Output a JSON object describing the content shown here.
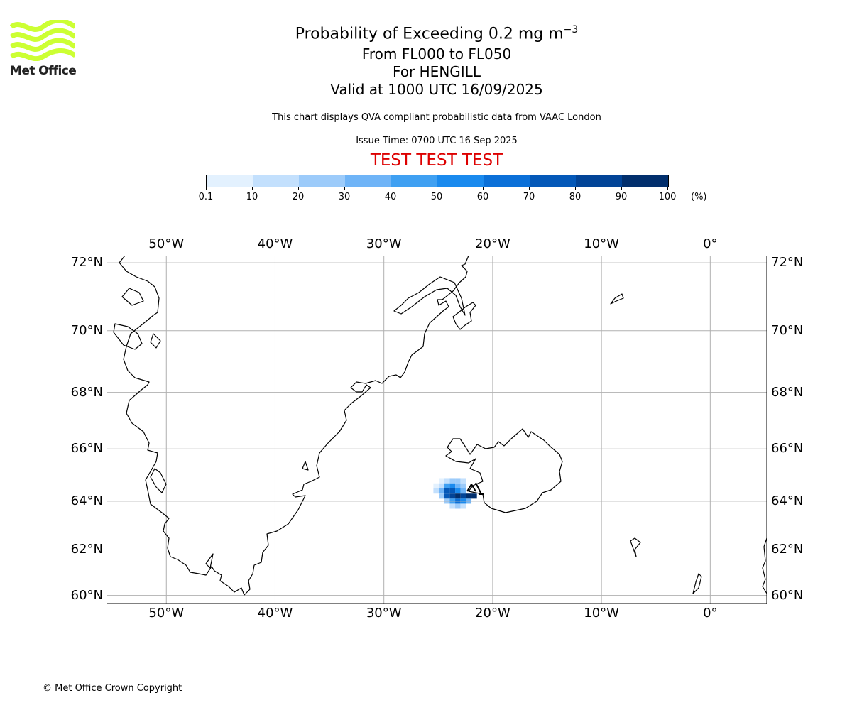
{
  "logo": {
    "text": "Met Office",
    "color": "#ccff33"
  },
  "title": {
    "line1_main": "Probability of Exceeding 0.2 mg m",
    "line1_sup": "−3",
    "line2": "From FL000 to FL050",
    "line3": "For HENGILL",
    "line4": "Valid at 1000 UTC 16/09/2025"
  },
  "description": "This chart displays QVA compliant probabilistic data from VAAC London",
  "issue_time": "Issue Time: 0700 UTC 16 Sep 2025",
  "test_banner": "TEST TEST TEST",
  "colorbar": {
    "labels": [
      "0.1",
      "10",
      "20",
      "30",
      "40",
      "50",
      "60",
      "70",
      "80",
      "90",
      "100"
    ],
    "colors": [
      "#e3f1fe",
      "#c3e0fd",
      "#9ccbfa",
      "#6fb4f7",
      "#3fa0f2",
      "#1a8aee",
      "#0b70d8",
      "#0458b8",
      "#024497",
      "#022f6d"
    ],
    "unit": "(%)"
  },
  "map": {
    "lon_labels": [
      "50°W",
      "40°W",
      "30°W",
      "20°W",
      "10°W",
      "0°"
    ],
    "lat_labels": [
      "72°N",
      "70°N",
      "68°N",
      "66°N",
      "64°N",
      "62°N",
      "60°N"
    ],
    "extent": {
      "lon_min": -55.5,
      "lon_max": 5.2,
      "lat_min": 59.6,
      "lat_max": 72.2
    },
    "volcano": "HENGILL",
    "plume_cells": [
      {
        "lon": -24.7,
        "lat": 64.8,
        "pct": 5
      },
      {
        "lon": -24.2,
        "lat": 64.8,
        "pct": 15
      },
      {
        "lon": -23.7,
        "lat": 64.8,
        "pct": 25
      },
      {
        "lon": -23.2,
        "lat": 64.8,
        "pct": 25
      },
      {
        "lon": -22.7,
        "lat": 64.8,
        "pct": 15
      },
      {
        "lon": -25.2,
        "lat": 64.6,
        "pct": 5
      },
      {
        "lon": -24.7,
        "lat": 64.6,
        "pct": 15
      },
      {
        "lon": -24.2,
        "lat": 64.6,
        "pct": 45
      },
      {
        "lon": -23.7,
        "lat": 64.6,
        "pct": 55
      },
      {
        "lon": -23.2,
        "lat": 64.6,
        "pct": 35
      },
      {
        "lon": -22.7,
        "lat": 64.6,
        "pct": 20
      },
      {
        "lon": -25.2,
        "lat": 64.4,
        "pct": 15
      },
      {
        "lon": -24.7,
        "lat": 64.4,
        "pct": 35
      },
      {
        "lon": -24.2,
        "lat": 64.4,
        "pct": 75
      },
      {
        "lon": -23.7,
        "lat": 64.4,
        "pct": 75
      },
      {
        "lon": -23.2,
        "lat": 64.4,
        "pct": 55
      },
      {
        "lon": -22.7,
        "lat": 64.4,
        "pct": 35
      },
      {
        "lon": -24.7,
        "lat": 64.2,
        "pct": 25
      },
      {
        "lon": -24.2,
        "lat": 64.2,
        "pct": 75
      },
      {
        "lon": -23.7,
        "lat": 64.2,
        "pct": 85
      },
      {
        "lon": -23.2,
        "lat": 64.2,
        "pct": 95
      },
      {
        "lon": -22.7,
        "lat": 64.2,
        "pct": 85
      },
      {
        "lon": -22.2,
        "lat": 64.2,
        "pct": 95
      },
      {
        "lon": -21.7,
        "lat": 64.2,
        "pct": 95
      },
      {
        "lon": -24.2,
        "lat": 64.0,
        "pct": 25
      },
      {
        "lon": -23.7,
        "lat": 64.0,
        "pct": 45
      },
      {
        "lon": -23.2,
        "lat": 64.0,
        "pct": 65
      },
      {
        "lon": -22.7,
        "lat": 64.0,
        "pct": 55
      },
      {
        "lon": -22.2,
        "lat": 64.0,
        "pct": 35
      },
      {
        "lon": -23.7,
        "lat": 63.8,
        "pct": 15
      },
      {
        "lon": -23.2,
        "lat": 63.8,
        "pct": 25
      },
      {
        "lon": -22.7,
        "lat": 63.8,
        "pct": 15
      }
    ]
  },
  "copyright": "© Met Office Crown Copyright"
}
